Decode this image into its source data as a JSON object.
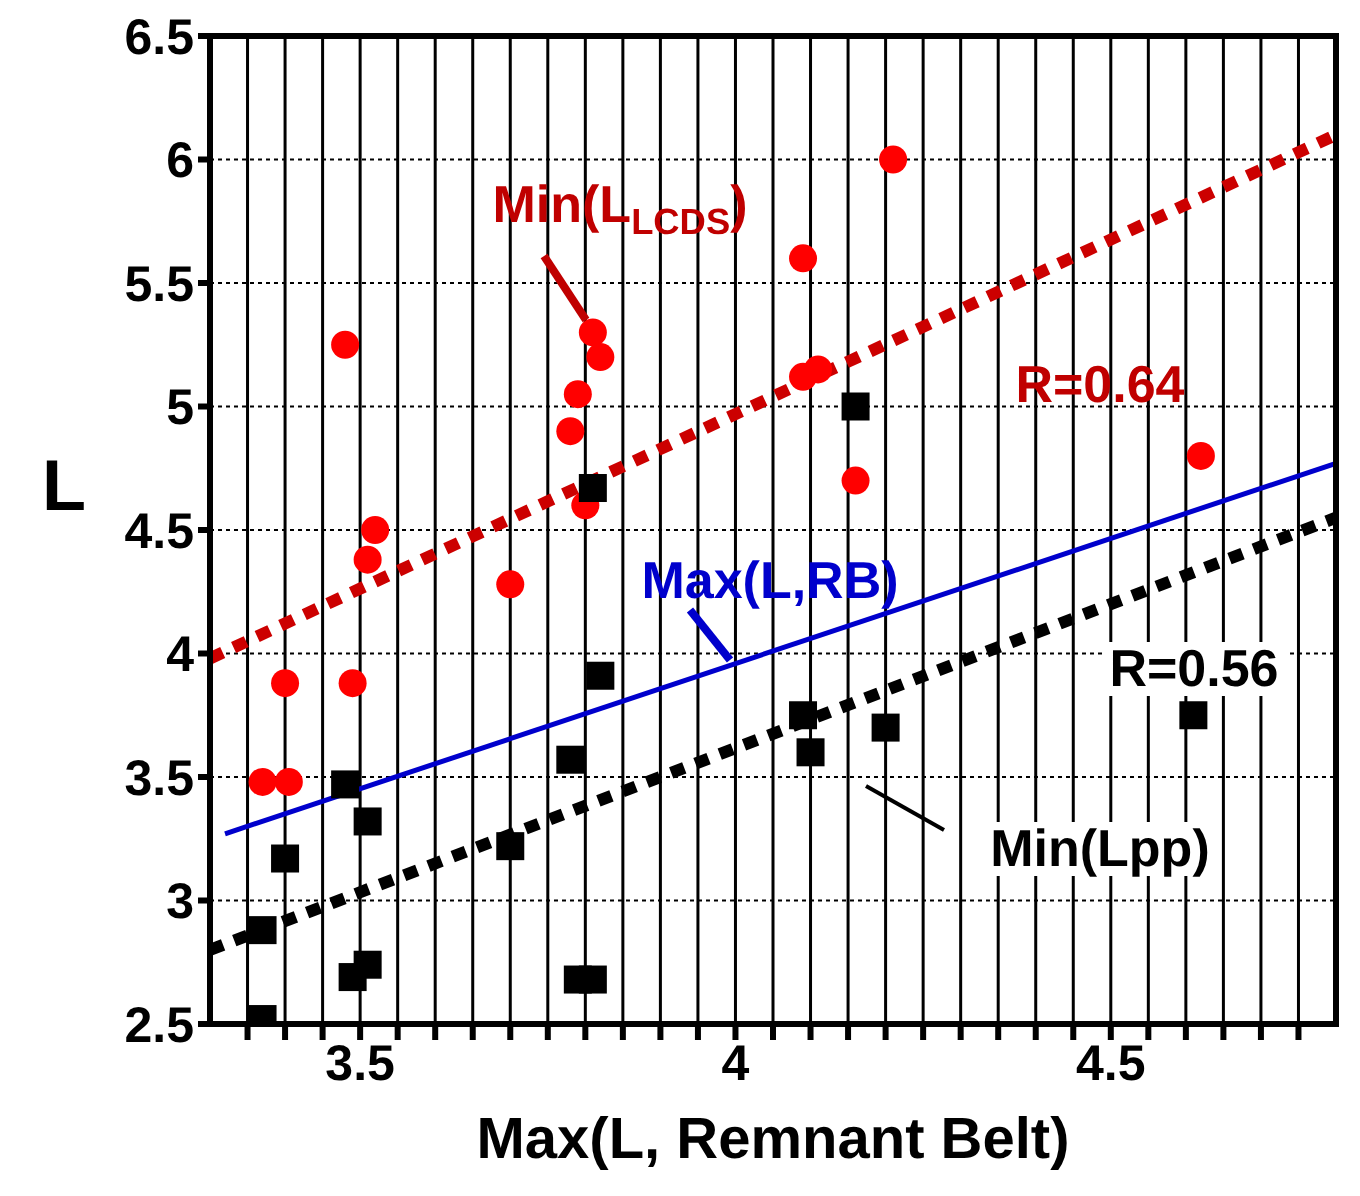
{
  "chart_data": {
    "type": "scatter",
    "xlabel": "Max(L, Remnant Belt)",
    "ylabel": "L",
    "xlim": [
      3.3,
      4.8
    ],
    "ylim": [
      2.5,
      6.5
    ],
    "xticks": [
      {
        "value": 3.35,
        "label": null
      },
      {
        "value": 3.4,
        "label": null
      },
      {
        "value": 3.45,
        "label": null
      },
      3.5,
      {
        "value": 3.55,
        "label": null
      },
      {
        "value": 3.6,
        "label": null
      },
      {
        "value": 3.65,
        "label": null
      },
      {
        "value": 3.7,
        "label": null
      },
      {
        "value": 3.75,
        "label": null
      },
      {
        "value": 3.8,
        "label": null
      },
      {
        "value": 3.85,
        "label": null
      },
      {
        "value": 3.9,
        "label": null
      },
      {
        "value": 3.95,
        "label": null
      },
      4,
      {
        "value": 4.05,
        "label": null
      },
      {
        "value": 4.1,
        "label": null
      },
      {
        "value": 4.15,
        "label": null
      },
      {
        "value": 4.2,
        "label": null
      },
      {
        "value": 4.25,
        "label": null
      },
      {
        "value": 4.3,
        "label": null
      },
      {
        "value": 4.35,
        "label": null
      },
      {
        "value": 4.4,
        "label": null
      },
      {
        "value": 4.45,
        "label": null
      },
      4.5,
      {
        "value": 4.55,
        "label": null
      },
      {
        "value": 4.6,
        "label": null
      },
      {
        "value": 4.65,
        "label": null
      },
      {
        "value": 4.7,
        "label": null
      },
      {
        "value": 4.75,
        "label": null
      }
    ],
    "yticks": [
      2.5,
      3,
      3.5,
      4,
      4.5,
      5,
      5.5,
      6,
      6.5
    ],
    "grid": true,
    "legend": false,
    "series": [
      {
        "type": "scatter",
        "color": "#ff0000",
        "marker": "circle",
        "x": [
          3.37,
          3.405,
          3.4,
          3.49,
          3.48,
          3.51,
          3.52,
          3.7,
          3.78,
          3.79,
          3.81,
          3.82,
          3.8,
          4.09,
          4.09,
          4.11,
          4.21,
          4.16,
          4.62
        ],
        "values": [
          3.48,
          3.48,
          3.88,
          3.88,
          5.25,
          4.38,
          4.5,
          4.28,
          4.9,
          5.05,
          5.3,
          5.2,
          4.6,
          5.6,
          5.12,
          5.15,
          6.0,
          4.7,
          4.8
        ]
      },
      {
        "type": "scatter",
        "color": "#000000",
        "marker": "square",
        "x": [
          3.37,
          3.4,
          3.37,
          3.48,
          3.51,
          3.49,
          3.51,
          3.7,
          3.78,
          3.79,
          3.81,
          3.82,
          3.81,
          4.16,
          4.1,
          4.09,
          4.2,
          4.61
        ],
        "values": [
          2.52,
          3.17,
          2.88,
          3.47,
          3.32,
          2.69,
          2.74,
          3.22,
          3.57,
          2.68,
          2.68,
          3.91,
          4.67,
          5.0,
          3.6,
          3.75,
          3.7,
          3.75
        ]
      },
      {
        "type": "line",
        "color": "#cc0000",
        "marker": "none",
        "line_style": "dotted",
        "x": [
          3.3,
          4.8
        ],
        "values": [
          3.98,
          6.1
        ]
      },
      {
        "type": "line",
        "color": "#000000",
        "marker": "none",
        "line_style": "dotted",
        "x": [
          3.3,
          4.8
        ],
        "values": [
          2.8,
          4.55
        ]
      },
      {
        "type": "line",
        "color": "#0000cc",
        "marker": "none",
        "line_style": "solid",
        "x": [
          3.32,
          4.8
        ],
        "values": [
          3.27,
          4.77
        ]
      }
    ],
    "annotations": [
      "Min(L$_{LCDS}$)",
      "Max(L,RB)",
      "Min(Lpp)",
      "R=0.64",
      "R=0.56"
    ]
  }
}
